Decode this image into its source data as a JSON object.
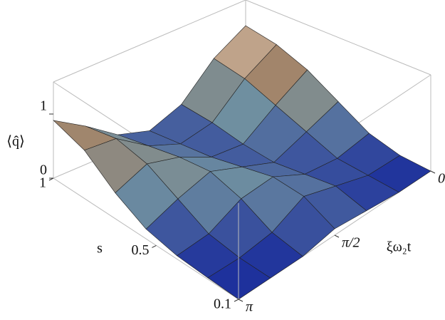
{
  "chart_data": {
    "type": "surface",
    "x_label": "s",
    "y_label": "ξω₂t",
    "z_label": "⟨q̂⟩",
    "x": [
      0.1,
      0.25,
      0.4,
      0.55,
      0.7,
      0.85,
      1
    ],
    "y": [
      0,
      0.52,
      1.05,
      1.57,
      2.09,
      2.62,
      3.14
    ],
    "z": [
      [
        0,
        0,
        0.05,
        0.1,
        0,
        0,
        0
      ],
      [
        0.05,
        0.05,
        0.2,
        0.35,
        0.1,
        0.02,
        0.02
      ],
      [
        0.2,
        0.1,
        0.15,
        0.4,
        0.35,
        0.1,
        0.05
      ],
      [
        0.5,
        0.3,
        0.1,
        0.3,
        0.5,
        0.35,
        0.15
      ],
      [
        0.8,
        0.5,
        0.15,
        0.2,
        0.45,
        0.6,
        0.4
      ],
      [
        1.0,
        0.7,
        0.25,
        0.15,
        0.35,
        0.7,
        0.75
      ],
      [
        1.1,
        0.8,
        0.3,
        0.1,
        0.25,
        0.6,
        0.9
      ]
    ],
    "xlim": [
      0.1,
      1
    ],
    "xticks": [
      0.1,
      0.5,
      1
    ],
    "ylim": [
      0,
      3.14159
    ],
    "yticks": [
      0,
      {
        "value": 1.5708,
        "label": "π/2"
      },
      {
        "value": 3.14159,
        "label": "π"
      }
    ],
    "zlim": [
      0,
      1.5
    ],
    "zticks": [
      0,
      1
    ],
    "colormap": [
      "#1c2f9c",
      "#6f8fa0",
      "#a98463",
      "#ffffff"
    ]
  }
}
